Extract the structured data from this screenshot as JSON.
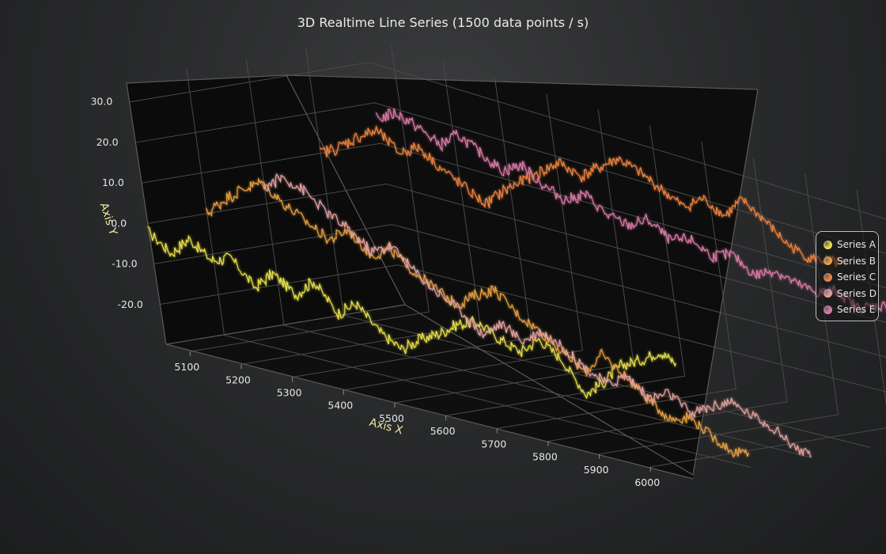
{
  "chart_data": {
    "type": "line",
    "title": "3D Realtime Line Series (1500 data points / s)",
    "xlabel": "Axis X",
    "ylabel": "Axis Y",
    "xlim": [
      5050,
      6080
    ],
    "ylim": [
      -30,
      36
    ],
    "x_ticks": [
      5100,
      5200,
      5300,
      5400,
      5500,
      5600,
      5700,
      5800,
      5900,
      6000
    ],
    "y_ticks": [
      "30.0",
      "20.0",
      "10.0",
      "0.0",
      "-10.0",
      "-20.0"
    ],
    "grid": true,
    "legend_position": "right",
    "series": [
      {
        "name": "Series A",
        "color": "#e8e04a",
        "z": 0.0,
        "x": [
          5050,
          5090,
          5130,
          5170,
          5210,
          5250,
          5290,
          5330,
          5370,
          5410,
          5450,
          5490,
          5530,
          5570,
          5610,
          5650,
          5690,
          5730,
          5770,
          5810,
          5850,
          5890,
          5930,
          5970,
          6010,
          6050,
          6080
        ],
        "y": [
          -2,
          -6,
          -1,
          -5,
          -3,
          -9,
          -4,
          -8,
          -3,
          -10,
          -6,
          -12,
          -15,
          -11,
          -8,
          -4,
          -2,
          -5,
          -7,
          -2,
          -6,
          -14,
          -9,
          -3,
          0,
          4,
          2
        ]
      },
      {
        "name": "Series B",
        "color": "#e7a040",
        "z": 0.25,
        "x": [
          5050,
          5090,
          5130,
          5170,
          5210,
          5250,
          5290,
          5330,
          5370,
          5410,
          5450,
          5490,
          5530,
          5570,
          5610,
          5650,
          5690,
          5730,
          5770,
          5810,
          5850,
          5890,
          5930,
          5970,
          6010,
          6050,
          6080
        ],
        "y": [
          0,
          5,
          9,
          12,
          8,
          5,
          2,
          6,
          1,
          4,
          0,
          -3,
          -6,
          -2,
          1,
          -4,
          -7,
          -11,
          -15,
          -9,
          -13,
          -18,
          -22,
          -20,
          -24,
          -27,
          -26
        ]
      },
      {
        "name": "Series C",
        "color": "#ee8440",
        "z": 0.75,
        "x": [
          5050,
          5090,
          5130,
          5170,
          5210,
          5250,
          5290,
          5330,
          5370,
          5410,
          5450,
          5490,
          5530,
          5570,
          5610,
          5650,
          5690,
          5730,
          5770,
          5810,
          5850,
          5890,
          5930,
          5970,
          6010,
          6050,
          6080
        ],
        "y": [
          10,
          13,
          17,
          20,
          16,
          19,
          15,
          12,
          9,
          14,
          18,
          22,
          26,
          24,
          28,
          32,
          30,
          27,
          24,
          28,
          25,
          31,
          27,
          22,
          20,
          21,
          21
        ]
      },
      {
        "name": "Series D",
        "color": "#e3a2a0",
        "z": 0.5,
        "x": [
          5050,
          5090,
          5130,
          5170,
          5210,
          5250,
          5290,
          5330,
          5370,
          5410,
          5450,
          5490,
          5530,
          5570,
          5610,
          5650,
          5690,
          5730,
          5770,
          5810,
          5850,
          5890,
          5930,
          5970,
          6010,
          6050,
          6080
        ],
        "y": [
          4,
          8,
          6,
          2,
          -1,
          -5,
          -2,
          -7,
          -11,
          -14,
          -19,
          -15,
          -18,
          -14,
          -17,
          -21,
          -24,
          -20,
          -25,
          -22,
          -26,
          -23,
          -20,
          -22,
          -24,
          -28,
          -30
        ]
      },
      {
        "name": "Series E",
        "color": "#de7aa8",
        "z": 1.0,
        "x": [
          5050,
          5090,
          5130,
          5170,
          5210,
          5250,
          5290,
          5330,
          5370,
          5410,
          5450,
          5490,
          5530,
          5570,
          5610,
          5650,
          5690,
          5730,
          5770,
          5810,
          5850,
          5890,
          5930,
          5970,
          6010,
          6050,
          6080
        ],
        "y": [
          16,
          19,
          17,
          14,
          18,
          15,
          12,
          15,
          11,
          9,
          12,
          8,
          7,
          10,
          6,
          8,
          5,
          7,
          3,
          6,
          4,
          3,
          5,
          2,
          4,
          6,
          3
        ]
      }
    ]
  }
}
